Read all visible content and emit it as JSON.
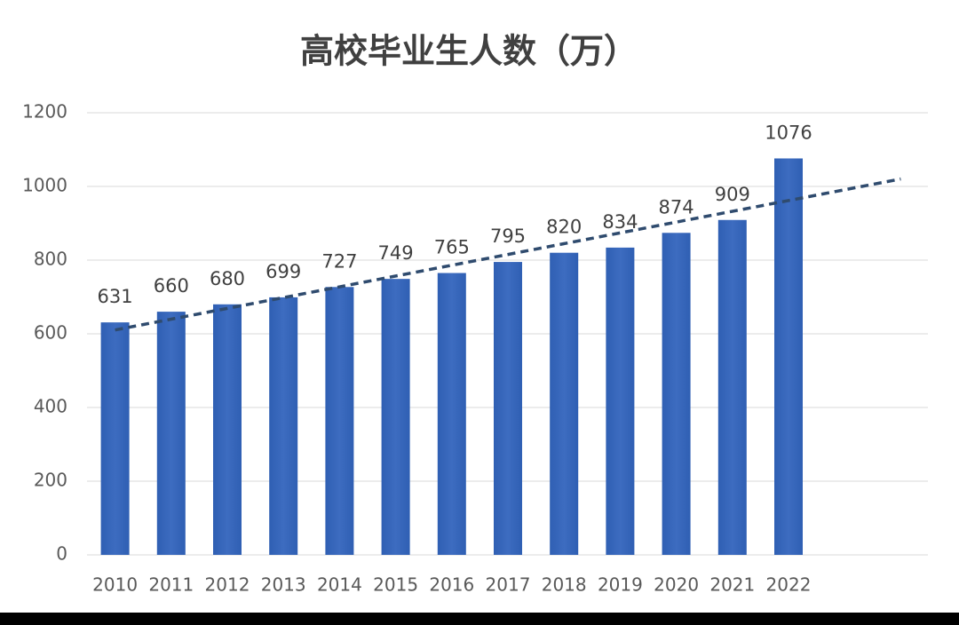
{
  "chart_data": {
    "type": "bar",
    "title": "高校毕业生人数（万）",
    "categories": [
      "2010",
      "2011",
      "2012",
      "2013",
      "2014",
      "2015",
      "2016",
      "2017",
      "2018",
      "2019",
      "2020",
      "2021",
      "2022"
    ],
    "values": [
      631,
      660,
      680,
      699,
      727,
      749,
      765,
      795,
      820,
      834,
      874,
      909,
      1076
    ],
    "color": "#3d6cc0",
    "ylim": [
      0,
      1200
    ],
    "yticks": [
      0,
      200,
      400,
      600,
      800,
      1000,
      1200
    ],
    "grid": true,
    "trendline": {
      "type": "linear",
      "forward": 2,
      "color": "#2f4b6e"
    }
  }
}
